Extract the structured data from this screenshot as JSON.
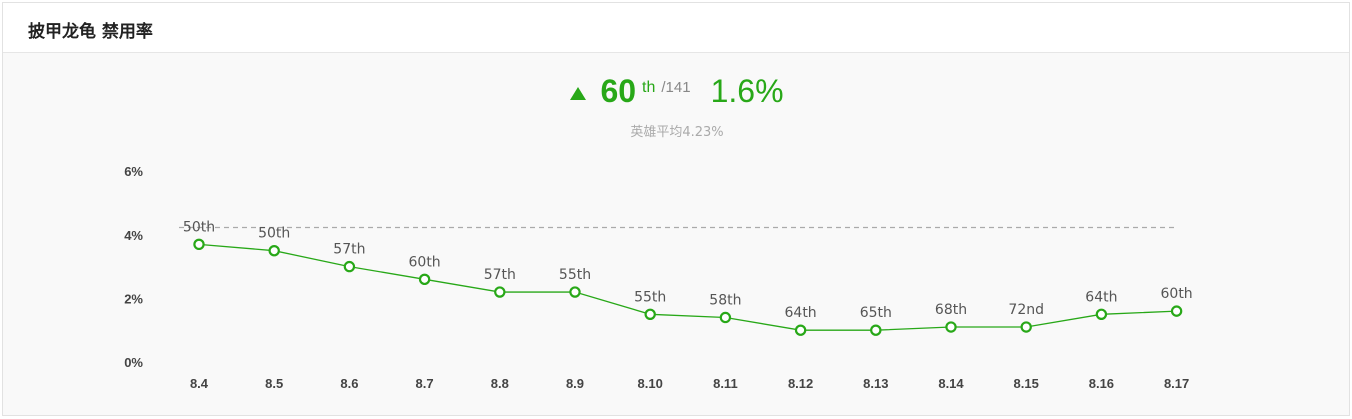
{
  "header": {
    "title": "披甲龙龟 禁用率"
  },
  "summary": {
    "trend_icon": "triangle-up-icon",
    "rank": "60",
    "rank_suffix": "th",
    "rank_total": "/141",
    "rate": "1.6%",
    "average_label": "英雄平均4.23%"
  },
  "colors": {
    "accent": "#28a818",
    "average_line": "#aaaaaa",
    "text": "#444444"
  },
  "chart_data": {
    "type": "line",
    "title": "",
    "xlabel": "",
    "ylabel": "",
    "categories": [
      "8.4",
      "8.5",
      "8.6",
      "8.7",
      "8.8",
      "8.9",
      "8.10",
      "8.11",
      "8.12",
      "8.13",
      "8.14",
      "8.15",
      "8.16",
      "8.17"
    ],
    "series": [
      {
        "values": [
          3.7,
          3.5,
          3.0,
          2.6,
          2.2,
          2.2,
          1.5,
          1.4,
          1.0,
          1.0,
          1.1,
          1.1,
          1.5,
          1.6
        ],
        "labels": [
          "50th",
          "50th",
          "57th",
          "60th",
          "57th",
          "55th",
          "55th",
          "58th",
          "64th",
          "65th",
          "68th",
          "72nd",
          "64th",
          "60th"
        ]
      }
    ],
    "reference_line": {
      "value": 4.23,
      "style": "dashed"
    },
    "yticks": [
      "0%",
      "2%",
      "4%",
      "6%"
    ],
    "ylim": [
      0,
      6
    ],
    "grid": false,
    "legend": "none"
  }
}
